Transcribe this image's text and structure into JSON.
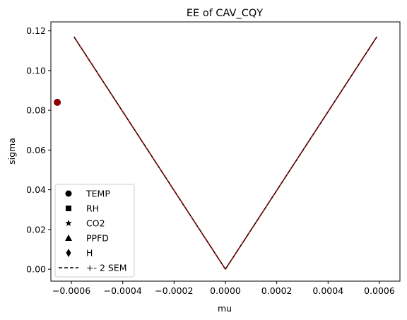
{
  "chart_data": {
    "type": "scatter",
    "title": "EE of CAV_CQY",
    "xlabel": "mu",
    "ylabel": "sigma",
    "xlim": [
      -0.00068,
      0.00068
    ],
    "ylim": [
      -0.006,
      0.1245
    ],
    "grid": false,
    "legend_position": "lower-left",
    "xticks": [
      -0.0006,
      -0.0004,
      -0.0002,
      0.0,
      0.0002,
      0.0004,
      0.0006
    ],
    "xtick_labels": [
      "−0.0006",
      "−0.0004",
      "−0.0002",
      "0.0000",
      "0.0002",
      "0.0004",
      "0.0006"
    ],
    "yticks": [
      0.0,
      0.02,
      0.04,
      0.06,
      0.08,
      0.1,
      0.12
    ],
    "ytick_labels": [
      "0.00",
      "0.02",
      "0.04",
      "0.06",
      "0.08",
      "0.10",
      "0.12"
    ],
    "points": [
      {
        "x": -0.000655,
        "y": 0.084,
        "marker": "circle",
        "color": "#8b0000"
      }
    ],
    "sem_lines": {
      "color": "#8b0000",
      "left": [
        [
          -0.00059,
          0.117
        ],
        [
          0.0,
          0.0
        ]
      ],
      "right": [
        [
          0.0,
          0.0
        ],
        [
          0.00059,
          0.117
        ]
      ]
    },
    "legend": [
      {
        "label": "TEMP",
        "marker": "circle"
      },
      {
        "label": "RH",
        "marker": "square"
      },
      {
        "label": "CO2",
        "marker": "star"
      },
      {
        "label": "PPFD",
        "marker": "triangle"
      },
      {
        "label": "H",
        "marker": "diamond"
      },
      {
        "label": "+- 2 SEM",
        "marker": "dashed-line"
      }
    ]
  }
}
